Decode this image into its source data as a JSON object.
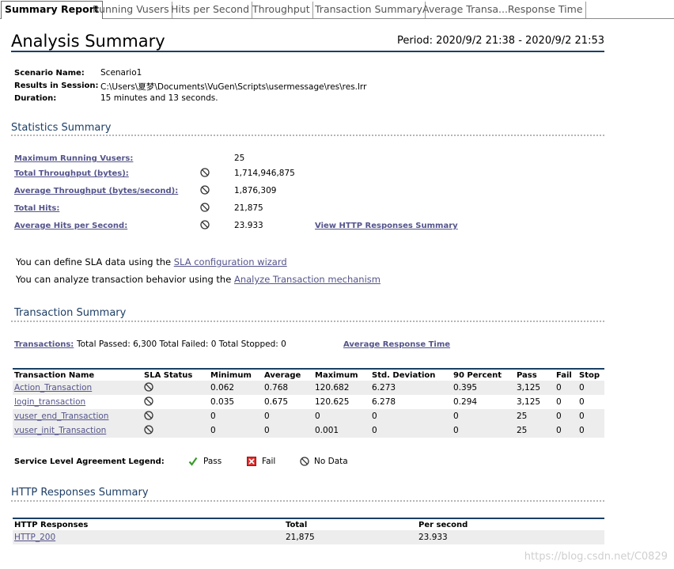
{
  "tabs": [
    {
      "label": "Summary Report",
      "active": true
    },
    {
      "label": "Running Vusers"
    },
    {
      "label": "Hits per Second"
    },
    {
      "label": "Throughput"
    },
    {
      "label": "Transaction Summary"
    },
    {
      "label": "Average Transa...Response Time"
    }
  ],
  "header": {
    "title": "Analysis Summary",
    "period": "Period: 2020/9/2 21:38 - 2020/9/2 21:53"
  },
  "scenario": {
    "name_label": "Scenario Name:",
    "name_value": "Scenario1",
    "results_label": "Results in Session:",
    "results_value": "C:\\Users\\夏梦\\Documents\\VuGen\\Scripts\\usermessage\\res\\res.lrr",
    "duration_label": "Duration:",
    "duration_value": "15 minutes and 13 seconds."
  },
  "stats": {
    "title": "Statistics Summary",
    "items": [
      {
        "label": "Maximum Running Vusers:",
        "value": "25",
        "icon": ""
      },
      {
        "label": "Total Throughput (bytes):",
        "value": "1,714,946,875",
        "icon": "no-data-icon"
      },
      {
        "label": "Average Throughput (bytes/second):",
        "value": "1,876,309",
        "icon": "no-data-icon"
      },
      {
        "label": "Total Hits:",
        "value": "21,875",
        "icon": "no-data-icon"
      },
      {
        "label": "Average Hits per Second:",
        "value": "23.933",
        "icon": "no-data-icon"
      }
    ],
    "http_link": "View HTTP Responses Summary"
  },
  "sla": {
    "line1_prefix": "You can define SLA data using the ",
    "line1_link": "SLA configuration wizard",
    "line2_prefix": "You can analyze transaction behavior using the ",
    "line2_link": "Analyze Transaction mechanism"
  },
  "transaction_summary": {
    "title": "Transaction Summary",
    "link_label": "Transactions:",
    "totals": "Total Passed: 6,300 Total Failed: 0 Total Stopped: 0",
    "avg_link": "Average Response Time",
    "columns": [
      "Transaction Name",
      "SLA Status",
      "Minimum",
      "Average",
      "Maximum",
      "Std. Deviation",
      "90 Percent",
      "Pass",
      "Fail",
      "Stop"
    ],
    "rows": [
      {
        "name": "Action_Transaction",
        "min": "0.062",
        "avg": "0.768",
        "max": "120.682",
        "std": "6.273",
        "p90": "0.395",
        "pass": "3,125",
        "fail": "0",
        "stop": "0"
      },
      {
        "name": "login_transaction",
        "min": "0.035",
        "avg": "0.675",
        "max": "120.625",
        "std": "6.278",
        "p90": "0.294",
        "pass": "3,125",
        "fail": "0",
        "stop": "0"
      },
      {
        "name": "vuser_end_Transaction",
        "min": "0",
        "avg": "0",
        "max": "0",
        "std": "0",
        "p90": "0",
        "pass": "25",
        "fail": "0",
        "stop": "0"
      },
      {
        "name": "vuser_init_Transaction",
        "min": "0",
        "avg": "0",
        "max": "0.001",
        "std": "0",
        "p90": "0",
        "pass": "25",
        "fail": "0",
        "stop": "0"
      }
    ]
  },
  "legend": {
    "title": "Service Level Agreement Legend:",
    "pass": "Pass",
    "fail": "Fail",
    "nodata": "No Data"
  },
  "http": {
    "title": "HTTP Responses Summary",
    "columns": [
      "HTTP Responses",
      "Total",
      "Per second"
    ],
    "rows": [
      {
        "name": "HTTP_200",
        "total": "21,875",
        "per_second": "23.933"
      }
    ]
  },
  "watermark": "https://blog.csdn.net/C0829",
  "colors": {
    "section_title": "#1d3e66",
    "link": "#54548c",
    "rule": "#1b3f66"
  }
}
